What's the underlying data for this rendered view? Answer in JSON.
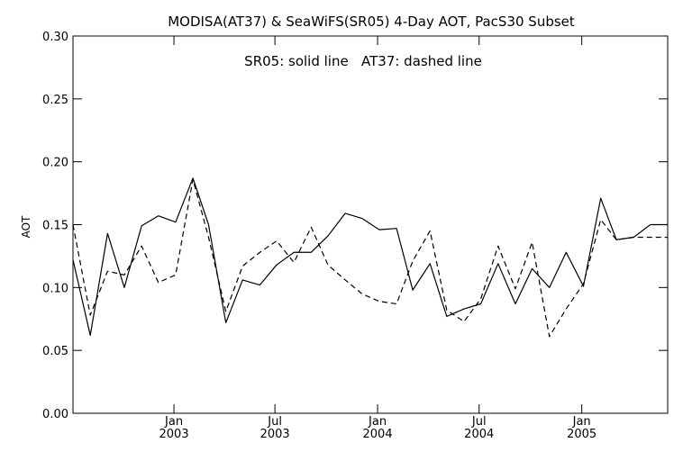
{
  "chart_data": {
    "type": "line",
    "title": "MODISA(AT37) & SeaWiFS(SR05) 4-Day AOT, PacS30 Subset",
    "annotation": "SR05: solid line   AT37: dashed line",
    "ylabel": "AOT",
    "xlabel": "",
    "ylim": [
      0,
      0.3
    ],
    "xlim": [
      "2002-07-04",
      "2005-06-04"
    ],
    "y_ticks": [
      "0.00",
      "0.05",
      "0.10",
      "0.15",
      "0.20",
      "0.25",
      "0.30"
    ],
    "x_ticks": [
      {
        "date": "2003-01-01",
        "line1": "Jan",
        "line2": "2003"
      },
      {
        "date": "2003-07-01",
        "line1": "Jul",
        "line2": "2003"
      },
      {
        "date": "2004-01-01",
        "line1": "Jan",
        "line2": "2004"
      },
      {
        "date": "2004-07-01",
        "line1": "Jul",
        "line2": "2004"
      },
      {
        "date": "2005-01-01",
        "line1": "Jan",
        "line2": "2005"
      }
    ],
    "grid": false,
    "legend": "none",
    "x": [
      "2002-07-04",
      "2002-08-04",
      "2002-09-04",
      "2002-10-04",
      "2002-11-04",
      "2002-12-04",
      "2003-01-04",
      "2003-02-04",
      "2003-03-04",
      "2003-04-04",
      "2003-05-04",
      "2003-06-04",
      "2003-07-04",
      "2003-08-04",
      "2003-09-04",
      "2003-10-04",
      "2003-11-04",
      "2003-12-04",
      "2004-01-04",
      "2004-02-04",
      "2004-03-04",
      "2004-04-04",
      "2004-05-04",
      "2004-06-04",
      "2004-07-04",
      "2004-08-04",
      "2004-09-04",
      "2004-10-04",
      "2004-11-04",
      "2004-12-04",
      "2005-01-04",
      "2005-02-04",
      "2005-03-04",
      "2005-04-04",
      "2005-05-04",
      "2005-06-04"
    ],
    "series": [
      {
        "name": "SR05",
        "style": "solid",
        "color": "#000000",
        "values": [
          0.122,
          0.062,
          0.143,
          0.1,
          0.149,
          0.157,
          0.152,
          0.187,
          0.15,
          0.072,
          0.106,
          0.102,
          0.118,
          0.128,
          0.128,
          0.141,
          0.159,
          0.155,
          0.146,
          0.147,
          0.098,
          0.119,
          0.077,
          0.083,
          0.087,
          0.119,
          0.087,
          0.115,
          0.1,
          0.128,
          0.101,
          0.171,
          0.138,
          0.14,
          0.15,
          0.15
        ]
      },
      {
        "name": "AT37",
        "style": "dashed",
        "color": "#000000",
        "values": [
          0.15,
          0.078,
          0.113,
          0.11,
          0.133,
          0.104,
          0.11,
          0.186,
          0.14,
          0.081,
          0.117,
          0.128,
          0.137,
          0.12,
          0.148,
          0.118,
          0.106,
          0.095,
          0.089,
          0.087,
          0.121,
          0.145,
          0.082,
          0.073,
          0.091,
          0.133,
          0.099,
          0.136,
          0.061,
          0.083,
          0.103,
          0.154,
          0.138,
          0.14,
          0.14,
          0.14
        ]
      }
    ]
  }
}
